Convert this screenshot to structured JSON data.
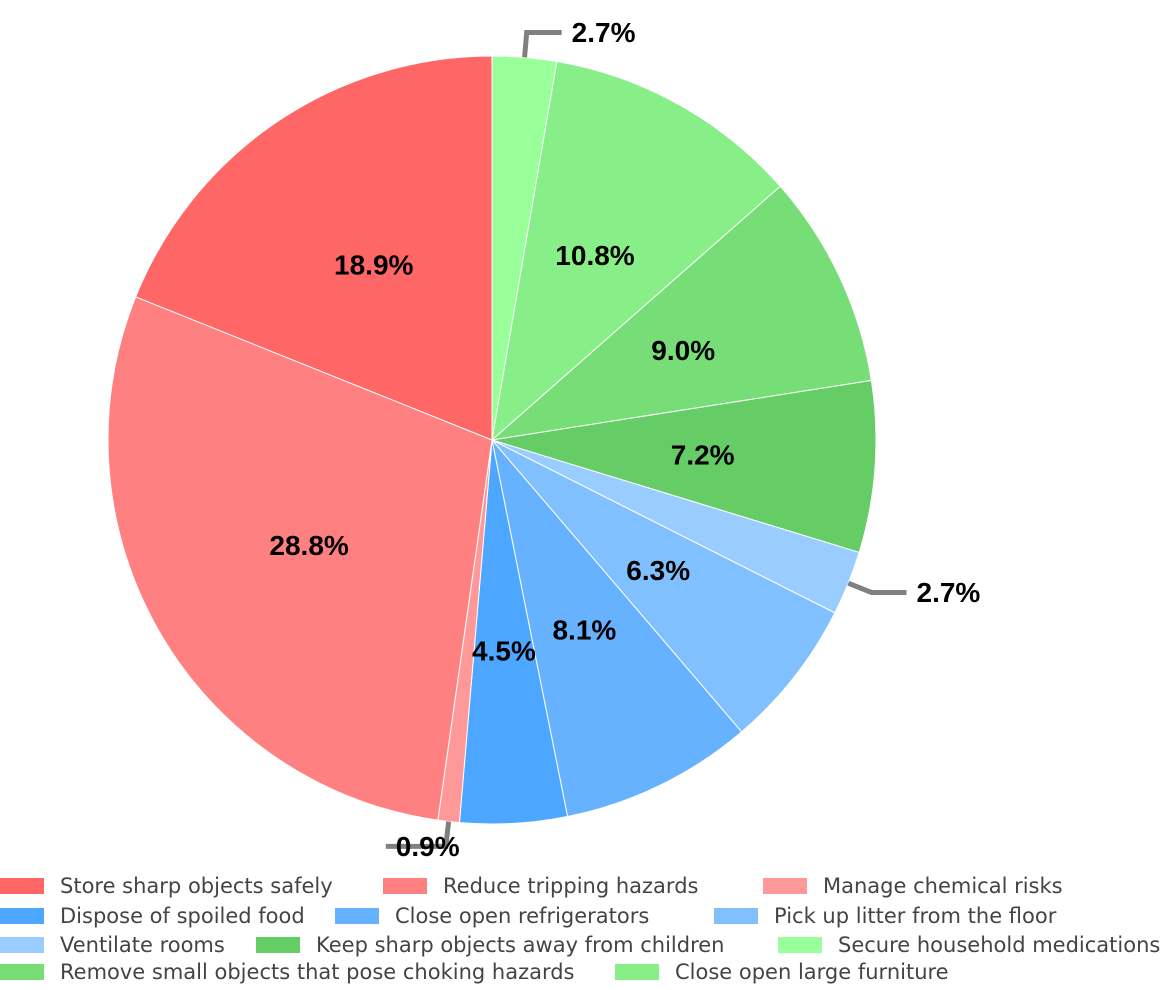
{
  "chart_data": {
    "type": "pie",
    "start": "top",
    "direction": "clockwise",
    "slices": [
      {
        "label": "Secure household medications",
        "value": 2.7,
        "value_label": "2.7%",
        "color": "#99FF99"
      },
      {
        "label": "Close open large furniture",
        "value": 10.8,
        "value_label": "10.8%",
        "color": "#88EE88"
      },
      {
        "label": "Remove small objects that pose choking hazards",
        "value": 9.0,
        "value_label": "9.0%",
        "color": "#77DD77"
      },
      {
        "label": "Keep sharp objects away from children",
        "value": 7.2,
        "value_label": "7.2%",
        "color": "#66CC66"
      },
      {
        "label": "Ventilate rooms",
        "value": 2.7,
        "value_label": "2.7%",
        "color": "#99CCFF"
      },
      {
        "label": "Pick up litter from the floor",
        "value": 6.3,
        "value_label": "6.3%",
        "color": "#80C0FF"
      },
      {
        "label": "Close open refrigerators",
        "value": 8.1,
        "value_label": "8.1%",
        "color": "#66B2FF"
      },
      {
        "label": "Dispose of spoiled food",
        "value": 4.5,
        "value_label": "4.5%",
        "color": "#4DA6FF"
      },
      {
        "label": "Manage chemical risks",
        "value": 0.9,
        "value_label": "0.9%",
        "color": "#FF9999"
      },
      {
        "label": "Reduce tripping hazards",
        "value": 28.8,
        "value_label": "28.8%",
        "color": "#FF8080"
      },
      {
        "label": "Store sharp objects safely",
        "value": 18.9,
        "value_label": "18.9%",
        "color": "#FF6666"
      }
    ],
    "legend_order": [
      "Store sharp objects safely",
      "Reduce tripping hazards",
      "Manage chemical risks",
      "Dispose of spoiled food",
      "Close open refrigerators",
      "Pick up litter from the floor",
      "Ventilate rooms",
      "Keep sharp objects away from children",
      "Secure household medications",
      "Remove small objects that pose choking hazards",
      "Close open large furniture"
    ],
    "legend_placement": "bottom",
    "callout_color": "#808080"
  }
}
